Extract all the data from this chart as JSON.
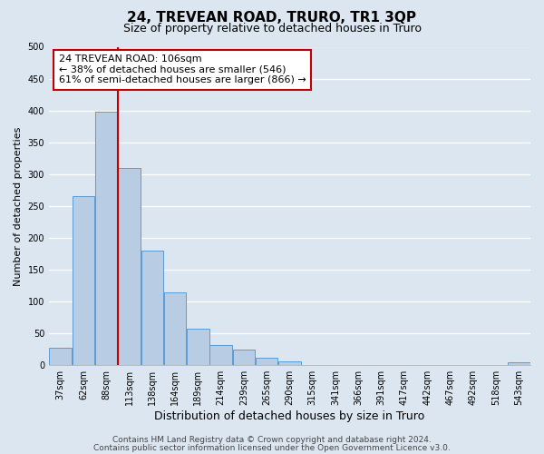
{
  "title": "24, TREVEAN ROAD, TRURO, TR1 3QP",
  "subtitle": "Size of property relative to detached houses in Truro",
  "xlabel": "Distribution of detached houses by size in Truro",
  "ylabel": "Number of detached properties",
  "bar_color": "#b8cce4",
  "bar_edge_color": "#5b9bd5",
  "background_color": "#dce6f1",
  "bin_labels": [
    "37sqm",
    "62sqm",
    "88sqm",
    "113sqm",
    "138sqm",
    "164sqm",
    "189sqm",
    "214sqm",
    "239sqm",
    "265sqm",
    "290sqm",
    "315sqm",
    "341sqm",
    "366sqm",
    "391sqm",
    "417sqm",
    "442sqm",
    "467sqm",
    "492sqm",
    "518sqm",
    "543sqm"
  ],
  "bar_heights": [
    28,
    265,
    398,
    310,
    180,
    115,
    57,
    32,
    24,
    12,
    6,
    1,
    0,
    0,
    0,
    0,
    1,
    0,
    0,
    0,
    4
  ],
  "ylim": [
    0,
    500
  ],
  "yticks": [
    0,
    50,
    100,
    150,
    200,
    250,
    300,
    350,
    400,
    450,
    500
  ],
  "vline_color": "#c00000",
  "annotation_text": "24 TREVEAN ROAD: 106sqm\n← 38% of detached houses are smaller (546)\n61% of semi-detached houses are larger (866) →",
  "annotation_box_color": "#ffffff",
  "annotation_box_edge_color": "#c00000",
  "footer_line1": "Contains HM Land Registry data © Crown copyright and database right 2024.",
  "footer_line2": "Contains public sector information licensed under the Open Government Licence v3.0.",
  "title_fontsize": 11,
  "subtitle_fontsize": 9,
  "xlabel_fontsize": 9,
  "ylabel_fontsize": 8,
  "tick_fontsize": 7,
  "annotation_fontsize": 8,
  "footer_fontsize": 6.5
}
